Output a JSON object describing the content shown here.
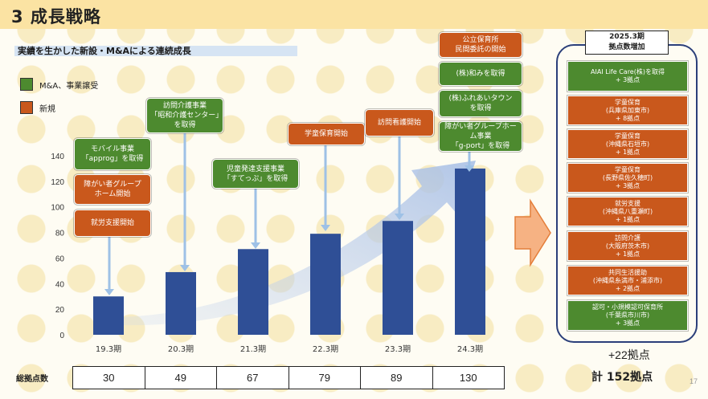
{
  "title": "3 成長戦略",
  "subtitle": "実績を生かした新設・M&Aによる連続成長",
  "legend": [
    {
      "label": "M&A、事業譲受",
      "color": "#4d8a2f"
    },
    {
      "label": "新規",
      "color": "#c9581c"
    }
  ],
  "chart_data": {
    "type": "bar",
    "categories": [
      "19.3期",
      "20.3期",
      "21.3期",
      "22.3期",
      "23.3期",
      "24.3期"
    ],
    "values": [
      30,
      49,
      67,
      79,
      89,
      130
    ],
    "ylim": [
      0,
      140
    ],
    "yticks": [
      0,
      20,
      40,
      60,
      80,
      100,
      120,
      140
    ],
    "bar_color": "#2f4f96",
    "grid": false
  },
  "callouts": [
    {
      "text": "モバイル事業\n「approg」を取得",
      "kind": "green"
    },
    {
      "text": "障がい者グループ\nホーム開始",
      "kind": "orange"
    },
    {
      "text": "就労支援開始",
      "kind": "orange"
    },
    {
      "text": "訪問介護事業\n「昭和介護センター」を取得",
      "kind": "green"
    },
    {
      "text": "児童発達支援事業\n「すてっぷ」を取得",
      "kind": "green"
    },
    {
      "text": "学童保育開始",
      "kind": "orange"
    },
    {
      "text": "訪問看護開始",
      "kind": "orange"
    },
    {
      "text": "公立保育所\n民間委託の開始",
      "kind": "orange"
    },
    {
      "text": "(株)和みを取得",
      "kind": "green"
    },
    {
      "text": "(株)ふれあいタウン\nを取得",
      "kind": "green"
    },
    {
      "text": "障がい者グループホーム事業\n「g-port」を取得",
      "kind": "green"
    }
  ],
  "totals": {
    "label": "総拠点数",
    "values": [
      "30",
      "49",
      "67",
      "79",
      "89",
      "130"
    ]
  },
  "right_panel": {
    "header": "2025.3期\n拠点数増加",
    "items": [
      {
        "text": "AIAI Life Care(株)を取得\n+ 3拠点",
        "kind": "green"
      },
      {
        "text": "学童保育\n(兵庫県加東市)\n+ 8拠点",
        "kind": "orange"
      },
      {
        "text": "学童保育\n(沖縄県石垣市)\n+ 1拠点",
        "kind": "orange"
      },
      {
        "text": "学童保育\n(長野県佐久穂町)\n+ 3拠点",
        "kind": "orange"
      },
      {
        "text": "就労支援\n(沖縄県八重瀬町)\n+ 1拠点",
        "kind": "orange"
      },
      {
        "text": "訪問介護\n(大阪府茨木市)\n+ 1拠点",
        "kind": "orange"
      },
      {
        "text": "共同生活援助\n(沖縄県糸満市・浦添市)\n+ 2拠点",
        "kind": "orange"
      },
      {
        "text": "認可・小規模認可保育所\n(千葉県市川市)\n+ 3拠点",
        "kind": "green"
      }
    ],
    "additional": "+22拠点",
    "grand_total": "計 152拠点"
  },
  "page_number": "17"
}
